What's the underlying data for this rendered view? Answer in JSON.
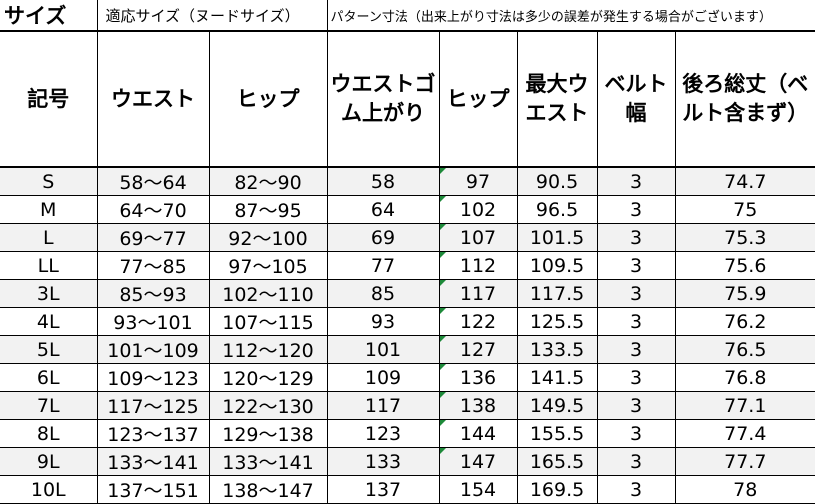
{
  "table": {
    "title": "サイズ",
    "group_fit": "適応サイズ（ヌードサイズ）",
    "group_pattern": "パターン寸法（出来上がり寸法は多少の誤差が発生する場合がございます）",
    "headers": {
      "code": "記号",
      "waist": "ウエスト",
      "hip": "ヒップ",
      "waist_rubber": "ウエストゴム上がり",
      "hip2": "ヒップ",
      "max_waist": "最大ウエスト",
      "belt_width": "ベルト幅",
      "back_length": "後ろ総丈（ベルト含まず）"
    },
    "rows": [
      {
        "code": "S",
        "waist": "58～64",
        "hip": "82～90",
        "waist_rubber": "58",
        "hip2": "97",
        "max_waist": "90.5",
        "belt_width": "3",
        "back_length": "74.7"
      },
      {
        "code": "M",
        "waist": "64～70",
        "hip": "87～95",
        "waist_rubber": "64",
        "hip2": "102",
        "max_waist": "96.5",
        "belt_width": "3",
        "back_length": "75"
      },
      {
        "code": "L",
        "waist": "69～77",
        "hip": "92～100",
        "waist_rubber": "69",
        "hip2": "107",
        "max_waist": "101.5",
        "belt_width": "3",
        "back_length": "75.3"
      },
      {
        "code": "LL",
        "waist": "77～85",
        "hip": "97～105",
        "waist_rubber": "77",
        "hip2": "112",
        "max_waist": "109.5",
        "belt_width": "3",
        "back_length": "75.6"
      },
      {
        "code": "3L",
        "waist": "85～93",
        "hip": "102～110",
        "waist_rubber": "85",
        "hip2": "117",
        "max_waist": "117.5",
        "belt_width": "3",
        "back_length": "75.9"
      },
      {
        "code": "4L",
        "waist": "93～101",
        "hip": "107～115",
        "waist_rubber": "93",
        "hip2": "122",
        "max_waist": "125.5",
        "belt_width": "3",
        "back_length": "76.2"
      },
      {
        "code": "5L",
        "waist": "101～109",
        "hip": "112～120",
        "waist_rubber": "101",
        "hip2": "127",
        "max_waist": "133.5",
        "belt_width": "3",
        "back_length": "76.5"
      },
      {
        "code": "6L",
        "waist": "109～123",
        "hip": "120～129",
        "waist_rubber": "109",
        "hip2": "136",
        "max_waist": "141.5",
        "belt_width": "3",
        "back_length": "76.8"
      },
      {
        "code": "7L",
        "waist": "117～125",
        "hip": "122～130",
        "waist_rubber": "117",
        "hip2": "138",
        "max_waist": "149.5",
        "belt_width": "3",
        "back_length": "77.1"
      },
      {
        "code": "8L",
        "waist": "123～137",
        "hip": "129～138",
        "waist_rubber": "123",
        "hip2": "144",
        "max_waist": "155.5",
        "belt_width": "3",
        "back_length": "77.4"
      },
      {
        "code": "9L",
        "waist": "133～141",
        "hip": "133～141",
        "waist_rubber": "133",
        "hip2": "147",
        "max_waist": "165.5",
        "belt_width": "3",
        "back_length": "77.7"
      },
      {
        "code": "10L",
        "waist": "137～151",
        "hip": "138～147",
        "waist_rubber": "137",
        "hip2": "154",
        "max_waist": "169.5",
        "belt_width": "3",
        "back_length": "78"
      }
    ]
  }
}
